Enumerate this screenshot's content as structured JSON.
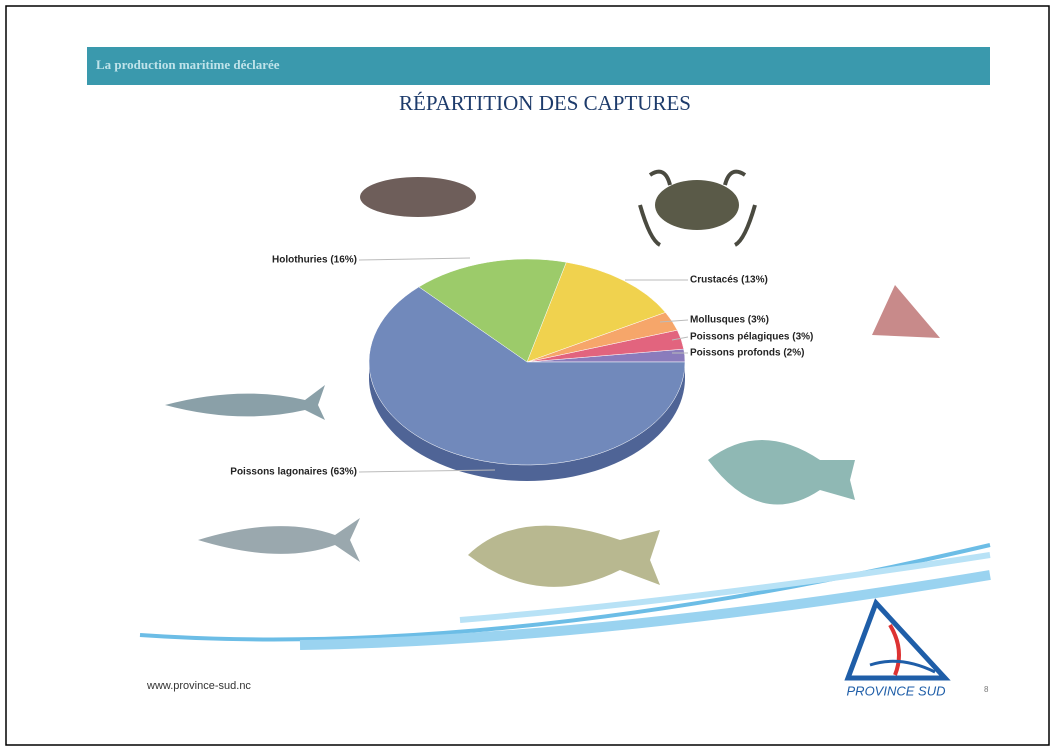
{
  "header": {
    "title": "La production maritime déclarée"
  },
  "chart_data": {
    "type": "pie",
    "title": "RÉPARTITION DES CAPTURES",
    "categories": [
      "Poissons profonds (2%)",
      "Poissons pélagiques (3%)",
      "Mollusques (3%)",
      "Crustacés (13%)",
      "Holothuries (16%)",
      "Poissons lagonaires (63%)"
    ],
    "values": [
      2,
      3,
      3,
      13,
      16,
      63
    ],
    "colors": [
      "#8a7cbc",
      "#e2647e",
      "#f6a66a",
      "#f0d24e",
      "#9ccb6a",
      "#7189bb"
    ]
  },
  "footer": {
    "website": "www.province-sud.nc",
    "logo": "PROVINCE SUD",
    "page": "8"
  }
}
